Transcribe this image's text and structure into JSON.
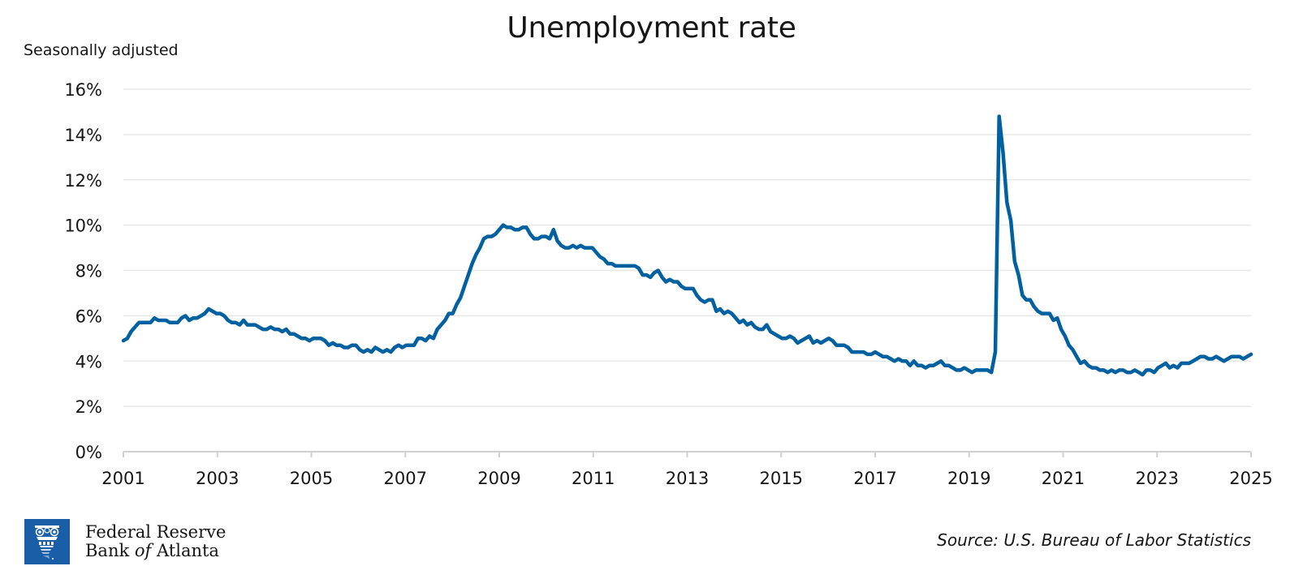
{
  "header": {
    "title": "Unemployment rate",
    "subtitle": "Seasonally adjusted"
  },
  "footer": {
    "logo_line1": "Federal Reserve",
    "logo_line2_pre": "Bank ",
    "logo_line2_of": "of",
    "logo_line2_post": " Atlanta",
    "source": "Source: U.S. Bureau of Labor Statistics"
  },
  "colors": {
    "line": "#0060a0",
    "grid": "#e8e8e8",
    "axis": "#d0d0d0",
    "logo_bg": "#1a5ea8"
  },
  "chart_data": {
    "type": "line",
    "title": "Unemployment rate",
    "subtitle": "Seasonally adjusted",
    "xlabel": "",
    "ylabel": "",
    "source": "Source: U.S. Bureau of Labor Statistics",
    "ylim": [
      0,
      16
    ],
    "yticks": [
      "0%",
      "2%",
      "4%",
      "6%",
      "8%",
      "10%",
      "12%",
      "14%",
      "16%"
    ],
    "xticks": [
      "2001",
      "2003",
      "2005",
      "2007",
      "2009",
      "2011",
      "2013",
      "2015",
      "2017",
      "2019",
      "2021",
      "2023",
      "2025"
    ],
    "grid": true,
    "legend": "none",
    "x_start": "2001-08",
    "x_end": "2025-08",
    "frequency": "monthly",
    "series": [
      {
        "name": "Unemployment rate",
        "unit": "%",
        "values": [
          4.9,
          5.0,
          5.3,
          5.5,
          5.7,
          5.7,
          5.7,
          5.7,
          5.9,
          5.8,
          5.8,
          5.8,
          5.7,
          5.7,
          5.7,
          5.9,
          6.0,
          5.8,
          5.9,
          5.9,
          6.0,
          6.1,
          6.3,
          6.2,
          6.1,
          6.1,
          6.0,
          5.8,
          5.7,
          5.7,
          5.6,
          5.8,
          5.6,
          5.6,
          5.6,
          5.5,
          5.4,
          5.4,
          5.5,
          5.4,
          5.4,
          5.3,
          5.4,
          5.2,
          5.2,
          5.1,
          5.0,
          5.0,
          4.9,
          5.0,
          5.0,
          5.0,
          4.9,
          4.7,
          4.8,
          4.7,
          4.7,
          4.6,
          4.6,
          4.7,
          4.7,
          4.5,
          4.4,
          4.5,
          4.4,
          4.6,
          4.5,
          4.4,
          4.5,
          4.4,
          4.6,
          4.7,
          4.6,
          4.7,
          4.7,
          4.7,
          5.0,
          5.0,
          4.9,
          5.1,
          5.0,
          5.4,
          5.6,
          5.8,
          6.1,
          6.1,
          6.5,
          6.8,
          7.3,
          7.8,
          8.3,
          8.7,
          9.0,
          9.4,
          9.5,
          9.5,
          9.6,
          9.8,
          10.0,
          9.9,
          9.9,
          9.8,
          9.8,
          9.9,
          9.9,
          9.6,
          9.4,
          9.4,
          9.5,
          9.5,
          9.4,
          9.8,
          9.3,
          9.1,
          9.0,
          9.0,
          9.1,
          9.0,
          9.1,
          9.0,
          9.0,
          9.0,
          8.8,
          8.6,
          8.5,
          8.3,
          8.3,
          8.2,
          8.2,
          8.2,
          8.2,
          8.2,
          8.2,
          8.1,
          7.8,
          7.8,
          7.7,
          7.9,
          8.0,
          7.7,
          7.5,
          7.6,
          7.5,
          7.5,
          7.3,
          7.2,
          7.2,
          7.2,
          6.9,
          6.7,
          6.6,
          6.7,
          6.7,
          6.2,
          6.3,
          6.1,
          6.2,
          6.1,
          5.9,
          5.7,
          5.8,
          5.6,
          5.7,
          5.5,
          5.4,
          5.4,
          5.6,
          5.3,
          5.2,
          5.1,
          5.0,
          5.0,
          5.1,
          5.0,
          4.8,
          4.9,
          5.0,
          5.1,
          4.8,
          4.9,
          4.8,
          4.9,
          5.0,
          4.9,
          4.7,
          4.7,
          4.7,
          4.6,
          4.4,
          4.4,
          4.4,
          4.4,
          4.3,
          4.3,
          4.4,
          4.3,
          4.2,
          4.2,
          4.1,
          4.0,
          4.1,
          4.0,
          4.0,
          3.8,
          4.0,
          3.8,
          3.8,
          3.7,
          3.8,
          3.8,
          3.9,
          4.0,
          3.8,
          3.8,
          3.7,
          3.6,
          3.6,
          3.7,
          3.6,
          3.5,
          3.6,
          3.6,
          3.6,
          3.6,
          3.5,
          4.4,
          14.8,
          13.2,
          11.0,
          10.2,
          8.4,
          7.8,
          6.9,
          6.7,
          6.7,
          6.4,
          6.2,
          6.1,
          6.1,
          6.1,
          5.8,
          5.9,
          5.4,
          5.1,
          4.7,
          4.5,
          4.2,
          3.9,
          4.0,
          3.8,
          3.7,
          3.7,
          3.6,
          3.6,
          3.5,
          3.6,
          3.5,
          3.6,
          3.6,
          3.5,
          3.5,
          3.6,
          3.5,
          3.4,
          3.6,
          3.6,
          3.5,
          3.7,
          3.8,
          3.9,
          3.7,
          3.8,
          3.7,
          3.9,
          3.9,
          3.9,
          4.0,
          4.1,
          4.2,
          4.2,
          4.1,
          4.1,
          4.2,
          4.1,
          4.0,
          4.1,
          4.2,
          4.2,
          4.2,
          4.1,
          4.2,
          4.3
        ]
      }
    ]
  }
}
